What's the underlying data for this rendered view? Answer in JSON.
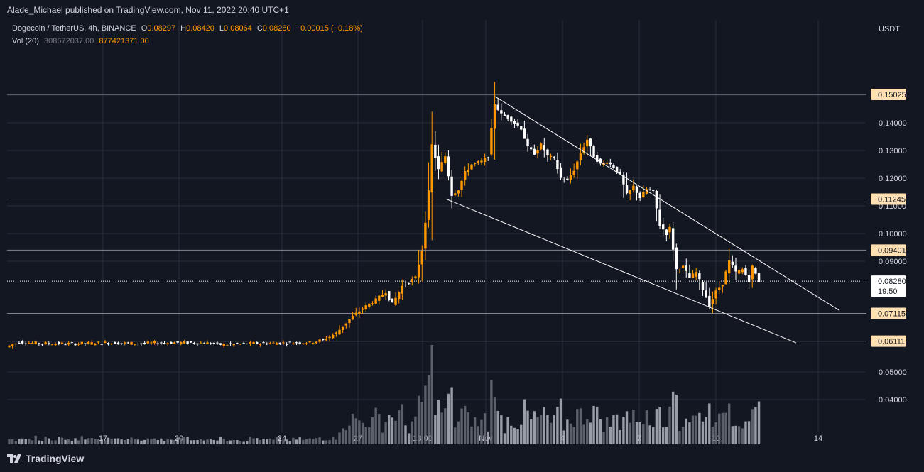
{
  "header": {
    "publisher_text": "Alade_Michael published on TradingView.com, Nov 11, 2022 20:40 UTC+1"
  },
  "legend": {
    "symbol": "Dogecoin / TetherUS, 4h, BINANCE",
    "o_label": "O",
    "o_value": "0.08297",
    "h_label": "H",
    "h_value": "0.08420",
    "l_label": "L",
    "l_value": "0.08064",
    "c_label": "C",
    "c_value": "0.08280",
    "change": "−0.00015 (−0.18%)",
    "vol_label": "Vol (20)",
    "vol_value_1": "308672037.00",
    "vol_value_2": "877421371.00"
  },
  "footer": {
    "brand": "TradingView"
  },
  "colors": {
    "background": "#131722",
    "up_candle": "#ff9800",
    "down_candle": "#ffffff",
    "label_bg": "#ffe0b2",
    "volume_up": "#6a6d78",
    "volume_down": "#b2b5be",
    "grid": "#2a2e39",
    "horizontal_line": "#b2b5be"
  },
  "chart_data": {
    "type": "candlestick",
    "y_axis_unit": "USDT",
    "y_ticks": [
      "0.04000",
      "0.05000",
      "0.09000",
      "0.10000",
      "0.11000",
      "0.12000",
      "0.13000",
      "0.14000",
      "0.15000"
    ],
    "x_ticks": [
      "17",
      "20",
      "24",
      "27",
      "13:00",
      "Nov",
      "4",
      "7",
      "10",
      "14"
    ],
    "horizontal_levels": [
      "0.15025",
      "0.11245",
      "0.09401",
      "0.07115",
      "0.06111"
    ],
    "last_price": "0.08280",
    "countdown": "19:50",
    "ylim": [
      0.03,
      0.158
    ],
    "grid": true,
    "trendlines": [
      {
        "name": "upper",
        "from": [
          "Oct 31 12:00",
          0.15
        ],
        "to": [
          "Nov 13 00:00",
          0.077
        ]
      },
      {
        "name": "lower",
        "from": [
          "Oct 29 20:00",
          0.1125
        ],
        "to": [
          "Nov 12 12:00",
          0.061
        ]
      }
    ],
    "candles_description": "DOGE/USDT 4h price path, mid-October to Nov 11 2022",
    "path_points": [
      [
        0,
        0.059
      ],
      [
        4,
        0.0608
      ],
      [
        10,
        0.0603
      ],
      [
        20,
        0.0602
      ],
      [
        30,
        0.0605
      ],
      [
        40,
        0.0603
      ],
      [
        50,
        0.0606
      ],
      [
        60,
        0.0605
      ],
      [
        66,
        0.0598
      ],
      [
        75,
        0.0603
      ],
      [
        85,
        0.0605
      ],
      [
        92,
        0.0607
      ],
      [
        96,
        0.0615
      ],
      [
        100,
        0.064
      ],
      [
        104,
        0.069
      ],
      [
        108,
        0.073
      ],
      [
        112,
        0.076
      ],
      [
        115,
        0.079
      ],
      [
        117,
        0.0745
      ],
      [
        120,
        0.081
      ],
      [
        124,
        0.084
      ],
      [
        126,
        0.094
      ],
      [
        128,
        0.115
      ],
      [
        129,
        0.132
      ],
      [
        131,
        0.123
      ],
      [
        133,
        0.128
      ],
      [
        135,
        0.114
      ],
      [
        137,
        0.116
      ],
      [
        139,
        0.122
      ],
      [
        141,
        0.125
      ],
      [
        144,
        0.126
      ],
      [
        146,
        0.128
      ],
      [
        148,
        0.147
      ],
      [
        150,
        0.143
      ],
      [
        152,
        0.142
      ],
      [
        154,
        0.14
      ],
      [
        156,
        0.138
      ],
      [
        158,
        0.131
      ],
      [
        160,
        0.129
      ],
      [
        162,
        0.132
      ],
      [
        164,
        0.128
      ],
      [
        166,
        0.127
      ],
      [
        168,
        0.12
      ],
      [
        170,
        0.119
      ],
      [
        172,
        0.123
      ],
      [
        174,
        0.129
      ],
      [
        176,
        0.134
      ],
      [
        178,
        0.128
      ],
      [
        180,
        0.125
      ],
      [
        182,
        0.126
      ],
      [
        184,
        0.124
      ],
      [
        186,
        0.121
      ],
      [
        188,
        0.114
      ],
      [
        190,
        0.117
      ],
      [
        192,
        0.113
      ],
      [
        194,
        0.116
      ],
      [
        196,
        0.115
      ],
      [
        198,
        0.103
      ],
      [
        200,
        0.1
      ],
      [
        201,
        0.102
      ],
      [
        203,
        0.087
      ],
      [
        205,
        0.088
      ],
      [
        207,
        0.084
      ],
      [
        209,
        0.086
      ],
      [
        211,
        0.08
      ],
      [
        213,
        0.074
      ],
      [
        215,
        0.079
      ],
      [
        217,
        0.082
      ],
      [
        219,
        0.09
      ],
      [
        221,
        0.086
      ],
      [
        223,
        0.087
      ],
      [
        225,
        0.083
      ],
      [
        226,
        0.088
      ],
      [
        228,
        0.0828
      ]
    ]
  }
}
